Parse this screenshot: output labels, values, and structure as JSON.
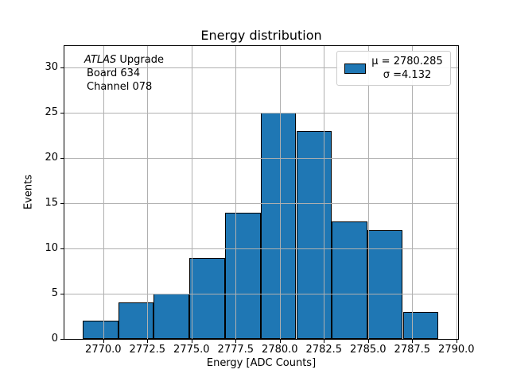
{
  "figure": {
    "title": "Energy distribution",
    "xlabel": "Energy [ADC Counts]",
    "ylabel": "Events",
    "annotation": {
      "line1_italic": "ATLAS",
      "line1_rest": " Upgrade",
      "line2": "Board 634",
      "line3": "Channel 078"
    },
    "legend": {
      "line1": "μ = 2780.285",
      "line2": "σ =4.132"
    }
  },
  "colors": {
    "bar_fill": "#1f77b4",
    "bar_edge": "#000000",
    "grid": "#b0b0b0",
    "spine": "#000000",
    "legend_border": "#cccccc",
    "background": "#ffffff"
  },
  "chart_data": {
    "type": "bar",
    "subtype": "histogram",
    "title": "Energy distribution",
    "xlabel": "Energy [ADC Counts]",
    "ylabel": "Events",
    "bin_edges": [
      2768.83,
      2770.85,
      2772.86,
      2774.88,
      2776.9,
      2778.91,
      2780.93,
      2782.94,
      2784.96,
      2786.97,
      2788.99
    ],
    "counts": [
      2,
      4,
      5,
      9,
      14,
      25,
      23,
      13,
      12,
      3
    ],
    "xticks": [
      2770.0,
      2772.5,
      2775.0,
      2777.5,
      2780.0,
      2782.5,
      2785.0,
      2787.5,
      2790.0
    ],
    "xtick_labels": [
      "2770.0",
      "2772.5",
      "2775.0",
      "2777.5",
      "2780.0",
      "2782.5",
      "2785.0",
      "2787.5",
      "2790.0"
    ],
    "yticks": [
      0,
      5,
      10,
      15,
      20,
      25,
      30
    ],
    "ytick_labels": [
      "0",
      "5",
      "10",
      "15",
      "20",
      "25",
      "30"
    ],
    "xlim": [
      2767.8,
      2790.1
    ],
    "ylim": [
      0,
      32.4
    ],
    "grid": true,
    "grid_above_bars": true,
    "legend_position": "upper right",
    "stats": {
      "mu": 2780.285,
      "sigma": 4.132,
      "total_events": 110
    }
  }
}
